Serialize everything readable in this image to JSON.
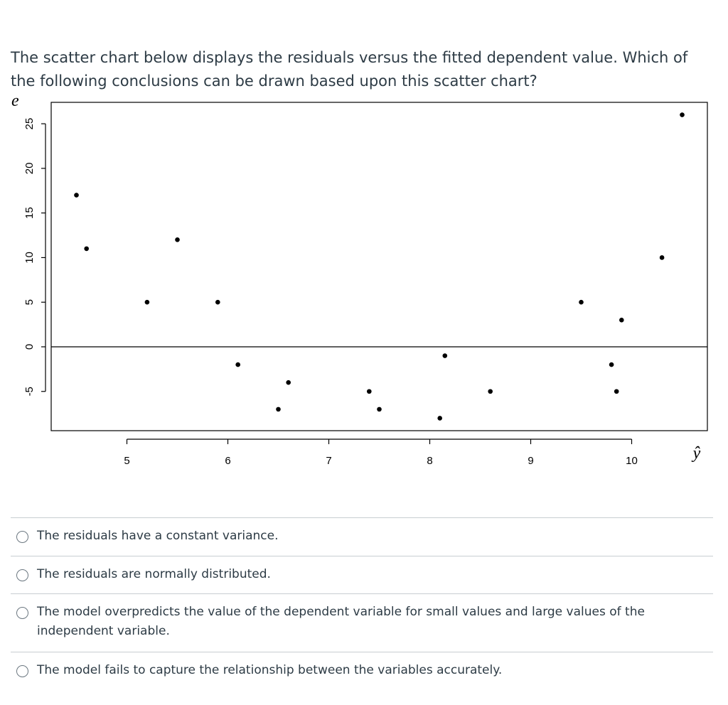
{
  "question": {
    "text": "The scatter chart below displays the residuals versus the fitted dependent value. Which of the following conclusions can be drawn based upon this scatter chart?"
  },
  "chart_data": {
    "type": "scatter",
    "title": "",
    "xlabel": "ŷ",
    "ylabel": "e",
    "xlim": [
      4.25,
      10.75
    ],
    "ylim": [
      -9.4,
      27.4
    ],
    "x_ticks": [
      5,
      6,
      7,
      8,
      9,
      10
    ],
    "y_ticks": [
      -5,
      0,
      5,
      10,
      15,
      20,
      25
    ],
    "reference_line_y": 0,
    "grid": false,
    "points": [
      {
        "x": 4.5,
        "y": 17
      },
      {
        "x": 4.6,
        "y": 11
      },
      {
        "x": 5.2,
        "y": 5
      },
      {
        "x": 5.5,
        "y": 12
      },
      {
        "x": 5.9,
        "y": 5
      },
      {
        "x": 6.1,
        "y": -2
      },
      {
        "x": 6.5,
        "y": -7
      },
      {
        "x": 6.6,
        "y": -4
      },
      {
        "x": 7.4,
        "y": -5
      },
      {
        "x": 7.5,
        "y": -7
      },
      {
        "x": 8.1,
        "y": -8
      },
      {
        "x": 8.15,
        "y": -1
      },
      {
        "x": 8.6,
        "y": -5
      },
      {
        "x": 9.5,
        "y": 5
      },
      {
        "x": 9.8,
        "y": -2
      },
      {
        "x": 9.85,
        "y": -5
      },
      {
        "x": 9.9,
        "y": 3
      },
      {
        "x": 10.3,
        "y": 10
      },
      {
        "x": 10.5,
        "y": 26
      }
    ]
  },
  "answers": [
    {
      "label": "The residuals have a constant variance."
    },
    {
      "label": "The residuals are normally distributed."
    },
    {
      "label": "The model overpredicts the value of the dependent variable for small values and large values of the independent variable."
    },
    {
      "label": "The model fails to capture the relationship between the variables accurately."
    }
  ]
}
